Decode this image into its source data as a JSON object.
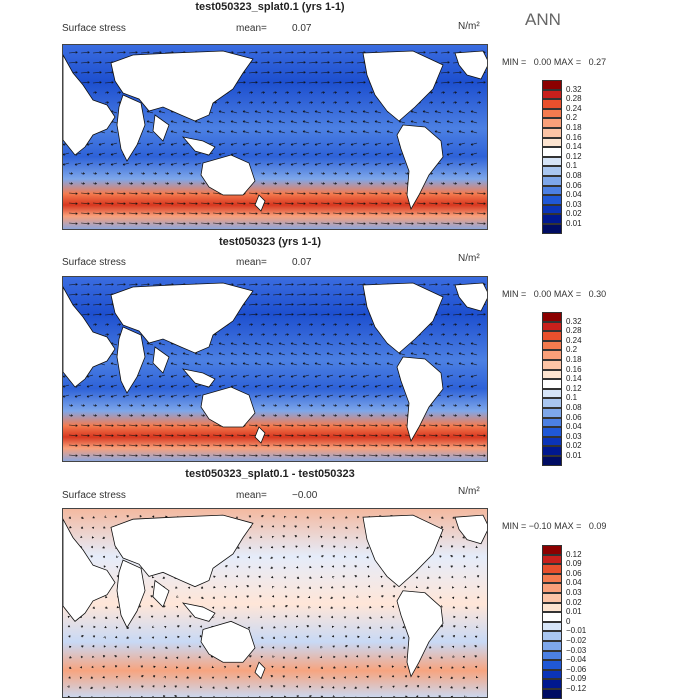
{
  "header": {
    "season": "ANN"
  },
  "panels": [
    {
      "title": "test050323_splat0.1 (yrs 1-1)",
      "variable": "Surface stress",
      "mean_label": "mean=",
      "mean_value": "0.07",
      "units": "N/m²",
      "min_label": "MIN =",
      "min_value": "0.00",
      "max_label": "MAX =",
      "max_value": "0.27",
      "colorbar": {
        "levels": [
          "0.32",
          "0.28",
          "0.24",
          "0.2",
          "0.18",
          "0.16",
          "0.14",
          "0.12",
          "0.1",
          "0.08",
          "0.06",
          "0.04",
          "0.03",
          "0.02",
          "0.01"
        ],
        "colors": [
          "#8b0000",
          "#c8201c",
          "#e8502d",
          "#f47b4f",
          "#f9a07a",
          "#fcc4a6",
          "#fde4d0",
          "#ffffff",
          "#d6e4f7",
          "#a9c6f0",
          "#7ea7ea",
          "#4c80e3",
          "#2058d6",
          "#0b34b8",
          "#00188f",
          "#000c63"
        ]
      }
    },
    {
      "title": "test050323 (yrs 1-1)",
      "variable": "Surface stress",
      "mean_label": "mean=",
      "mean_value": "0.07",
      "units": "N/m²",
      "min_label": "MIN =",
      "min_value": "0.00",
      "max_label": "MAX =",
      "max_value": "0.30",
      "colorbar": {
        "levels": [
          "0.32",
          "0.28",
          "0.24",
          "0.2",
          "0.18",
          "0.16",
          "0.14",
          "0.12",
          "0.1",
          "0.08",
          "0.06",
          "0.04",
          "0.03",
          "0.02",
          "0.01"
        ],
        "colors": [
          "#8b0000",
          "#c8201c",
          "#e8502d",
          "#f47b4f",
          "#f9a07a",
          "#fcc4a6",
          "#fde4d0",
          "#ffffff",
          "#d6e4f7",
          "#a9c6f0",
          "#7ea7ea",
          "#4c80e3",
          "#2058d6",
          "#0b34b8",
          "#00188f",
          "#000c63"
        ]
      }
    },
    {
      "title": "test050323_splat0.1 - test050323",
      "variable": "Surface stress",
      "mean_label": "mean=",
      "mean_value": "−0.00",
      "units": "N/m²",
      "min_label": "MIN =",
      "min_value": "−0.10",
      "max_label": "MAX =",
      "max_value": "0.09",
      "colorbar": {
        "levels": [
          "0.12",
          "0.09",
          "0.06",
          "0.04",
          "0.03",
          "0.02",
          "0.01",
          "0",
          "−0.01",
          "−0.02",
          "−0.03",
          "−0.04",
          "−0.06",
          "−0.09",
          "−0.12"
        ],
        "colors": [
          "#8b0000",
          "#c8201c",
          "#e8502d",
          "#f47b4f",
          "#f9a07a",
          "#fcc4a6",
          "#fde4d0",
          "#ffffff",
          "#d6e4f7",
          "#a9c6f0",
          "#7ea7ea",
          "#4c80e3",
          "#2058d6",
          "#0b34b8",
          "#00188f",
          "#000c63"
        ]
      }
    }
  ],
  "chart_data": [
    {
      "type": "heatmap",
      "title": "test050323_splat0.1 (yrs 1-1)",
      "variable": "Surface stress",
      "units": "N/m²",
      "mean": 0.07,
      "min": 0.0,
      "max": 0.27,
      "season": "ANN"
    },
    {
      "type": "heatmap",
      "title": "test050323 (yrs 1-1)",
      "variable": "Surface stress",
      "units": "N/m²",
      "mean": 0.07,
      "min": 0.0,
      "max": 0.3,
      "season": "ANN"
    },
    {
      "type": "heatmap",
      "title": "test050323_splat0.1 - test050323",
      "variable": "Surface stress",
      "units": "N/m²",
      "mean": -0.0,
      "min": -0.1,
      "max": 0.09,
      "season": "ANN"
    }
  ]
}
